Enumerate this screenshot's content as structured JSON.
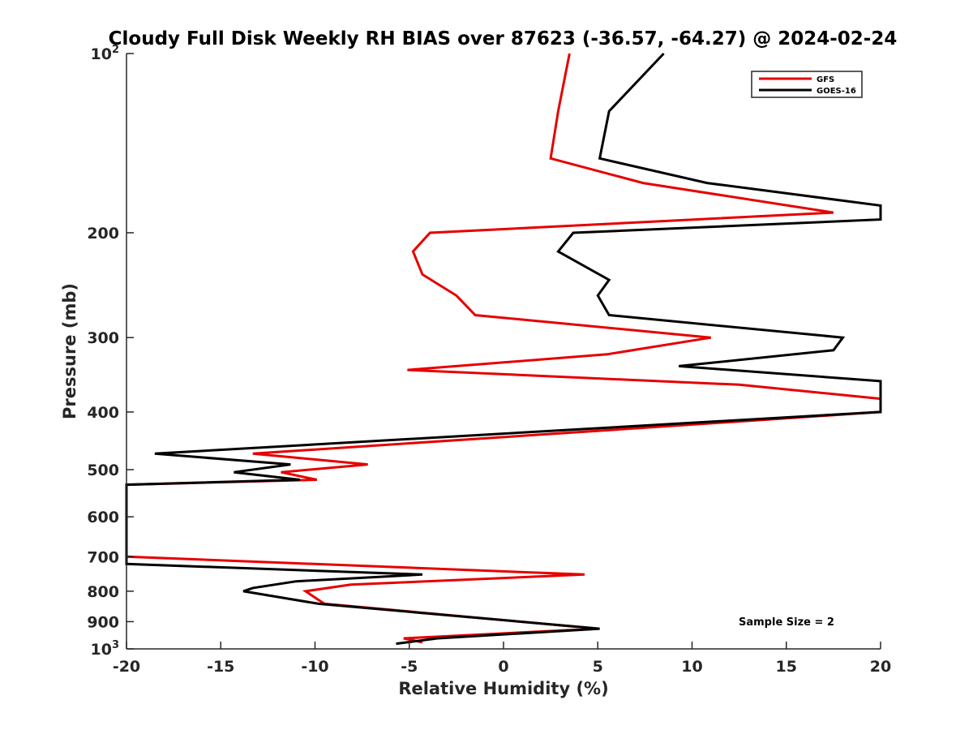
{
  "chart_data": {
    "type": "line",
    "title": "Cloudy Full Disk Weekly RH BIAS over 87623 (-36.57, -64.27) @ 2024-02-24",
    "xlabel": "Relative Humidity (%)",
    "ylabel": "Pressure (mb)",
    "xlim": [
      -20,
      20
    ],
    "ylim": [
      100,
      1000
    ],
    "y_scale": "log",
    "y_reversed": true,
    "x_ticks": [
      -20,
      -15,
      -10,
      -5,
      0,
      5,
      10,
      15,
      20
    ],
    "x_tick_labels": [
      "-20",
      "-15",
      "-10",
      "-5",
      "0",
      "5",
      "10",
      "15",
      "20"
    ],
    "y_ticks": [
      {
        "value": 100,
        "base": "10",
        "exp": "2"
      },
      {
        "value": 200,
        "label": "200"
      },
      {
        "value": 300,
        "label": "300"
      },
      {
        "value": 400,
        "label": "400"
      },
      {
        "value": 500,
        "label": "500"
      },
      {
        "value": 600,
        "label": "600"
      },
      {
        "value": 700,
        "label": "700"
      },
      {
        "value": 800,
        "label": "800"
      },
      {
        "value": 900,
        "label": "900"
      },
      {
        "value": 1000,
        "base": "10",
        "exp": "3"
      }
    ],
    "grid": false,
    "legend_position": "top-right",
    "annotation": "Sample Size = 2",
    "series": [
      {
        "name": "GFS",
        "color": "#e60000",
        "points": [
          {
            "x": 3.5,
            "y": 100
          },
          {
            "x": 2.9,
            "y": 125
          },
          {
            "x": 2.5,
            "y": 150
          },
          {
            "x": 7.4,
            "y": 165
          },
          {
            "x": 17.5,
            "y": 185
          },
          {
            "x": -3.9,
            "y": 200
          },
          {
            "x": -4.8,
            "y": 215
          },
          {
            "x": -4.3,
            "y": 235
          },
          {
            "x": -2.5,
            "y": 255
          },
          {
            "x": -1.5,
            "y": 275
          },
          {
            "x": 11.0,
            "y": 300
          },
          {
            "x": 5.5,
            "y": 320
          },
          {
            "x": -5.1,
            "y": 340
          },
          {
            "x": 12.5,
            "y": 360
          },
          {
            "x": 20,
            "y": 380
          },
          {
            "x": 20,
            "y": 400
          },
          {
            "x": 12.5,
            "y": 415
          },
          {
            "x": -13.3,
            "y": 470
          },
          {
            "x": -7.2,
            "y": 490
          },
          {
            "x": -11.8,
            "y": 505
          },
          {
            "x": -9.9,
            "y": 520
          },
          {
            "x": -20,
            "y": 530
          },
          {
            "x": -20,
            "y": 700
          },
          {
            "x": 4.3,
            "y": 750
          },
          {
            "x": -8.1,
            "y": 780
          },
          {
            "x": -10.5,
            "y": 800
          },
          {
            "x": -10.0,
            "y": 820
          },
          {
            "x": -9.5,
            "y": 840
          },
          {
            "x": 5.0,
            "y": 925
          },
          {
            "x": -5.3,
            "y": 960
          },
          {
            "x": -4.3,
            "y": 975
          }
        ]
      },
      {
        "name": "GOES-16",
        "color": "#000000",
        "points": [
          {
            "x": 8.5,
            "y": 100
          },
          {
            "x": 5.6,
            "y": 125
          },
          {
            "x": 5.1,
            "y": 150
          },
          {
            "x": 10.8,
            "y": 165
          },
          {
            "x": 20,
            "y": 180
          },
          {
            "x": 20,
            "y": 190
          },
          {
            "x": 3.7,
            "y": 200
          },
          {
            "x": 2.9,
            "y": 215
          },
          {
            "x": 5.6,
            "y": 240
          },
          {
            "x": 5.0,
            "y": 255
          },
          {
            "x": 5.6,
            "y": 275
          },
          {
            "x": 18.0,
            "y": 300
          },
          {
            "x": 17.5,
            "y": 315
          },
          {
            "x": 9.3,
            "y": 335
          },
          {
            "x": 20,
            "y": 355
          },
          {
            "x": 20,
            "y": 400
          },
          {
            "x": -18.5,
            "y": 470
          },
          {
            "x": -11.3,
            "y": 490
          },
          {
            "x": -14.3,
            "y": 505
          },
          {
            "x": -10.8,
            "y": 520
          },
          {
            "x": -20,
            "y": 530
          },
          {
            "x": -20,
            "y": 720
          },
          {
            "x": -4.3,
            "y": 750
          },
          {
            "x": -11.0,
            "y": 770
          },
          {
            "x": -13.3,
            "y": 790
          },
          {
            "x": -13.8,
            "y": 800
          },
          {
            "x": -9.8,
            "y": 840
          },
          {
            "x": 5.1,
            "y": 925
          },
          {
            "x": -3.5,
            "y": 960
          },
          {
            "x": -5.7,
            "y": 980
          }
        ]
      }
    ]
  },
  "colors": {
    "axis": "#262626",
    "background": "#ffffff"
  }
}
